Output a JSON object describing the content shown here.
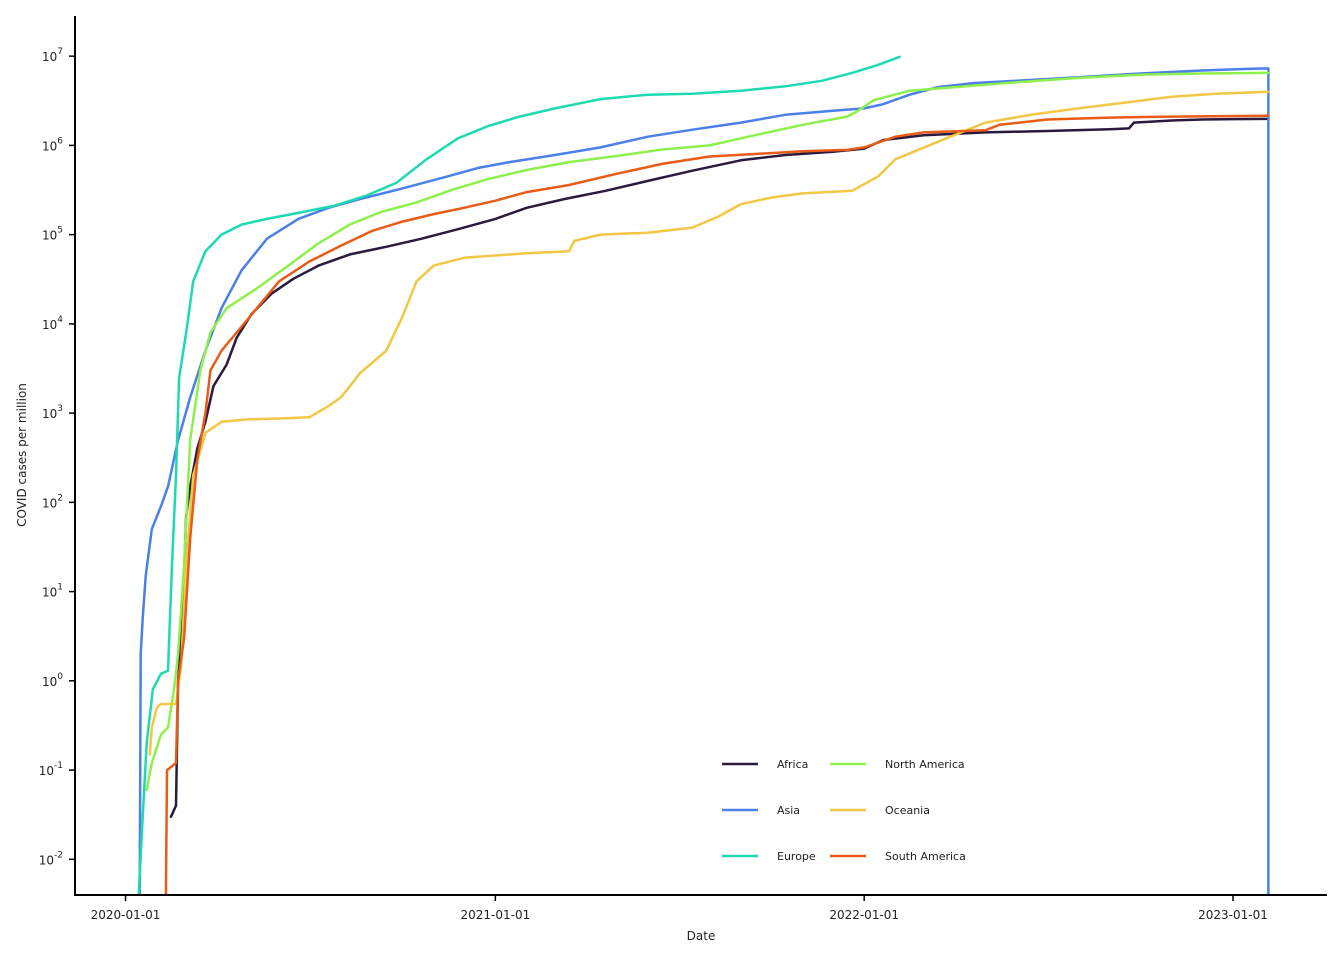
{
  "chart_data": {
    "type": "line",
    "xlabel": "Date",
    "ylabel": "COVID cases per million",
    "yscale": "log",
    "ylim_exponents": [
      -2.4,
      7.45
    ],
    "xlim": [
      "2019-11-12",
      "2023-04-04"
    ],
    "x_ticks": [
      "2020-01-01",
      "2021-01-01",
      "2022-01-01",
      "2023-01-01"
    ],
    "y_ticks": [
      {
        "base": "10",
        "exp": "-2"
      },
      {
        "base": "10",
        "exp": "-1"
      },
      {
        "base": "10",
        "exp": "0"
      },
      {
        "base": "10",
        "exp": "1"
      },
      {
        "base": "10",
        "exp": "2"
      },
      {
        "base": "10",
        "exp": "3"
      },
      {
        "base": "10",
        "exp": "4"
      },
      {
        "base": "10",
        "exp": "5"
      },
      {
        "base": "10",
        "exp": "6"
      },
      {
        "base": "10",
        "exp": "7"
      }
    ],
    "legend_position": "bottom-center",
    "grid": false,
    "series": [
      {
        "name": "Africa",
        "color": "#2b1a3f",
        "points": [
          [
            "2020-02-15",
            0.03
          ],
          [
            "2020-02-20",
            0.04
          ],
          [
            "2020-02-22",
            1
          ],
          [
            "2020-02-26",
            4
          ],
          [
            "2020-03-01",
            70
          ],
          [
            "2020-03-05",
            150
          ],
          [
            "2020-03-12",
            400
          ],
          [
            "2020-03-20",
            800
          ],
          [
            "2020-03-28",
            2000
          ],
          [
            "2020-04-10",
            3500
          ],
          [
            "2020-04-20",
            7000
          ],
          [
            "2020-05-05",
            13000
          ],
          [
            "2020-05-25",
            22000
          ],
          [
            "2020-06-15",
            32000
          ],
          [
            "2020-07-10",
            45000
          ],
          [
            "2020-08-10",
            60000
          ],
          [
            "2020-09-15",
            73000
          ],
          [
            "2020-10-20",
            90000
          ],
          [
            "2020-11-25",
            115000
          ],
          [
            "2021-01-01",
            150000
          ],
          [
            "2021-02-01",
            200000
          ],
          [
            "2021-03-10",
            250000
          ],
          [
            "2021-04-20",
            310000
          ],
          [
            "2021-06-01",
            400000
          ],
          [
            "2021-07-15",
            520000
          ],
          [
            "2021-09-01",
            680000
          ],
          [
            "2021-10-15",
            780000
          ],
          [
            "2021-12-01",
            850000
          ],
          [
            "2022-01-01",
            920000
          ],
          [
            "2022-01-20",
            1150000
          ],
          [
            "2022-03-01",
            1300000
          ],
          [
            "2022-05-01",
            1400000
          ],
          [
            "2022-07-01",
            1450000
          ],
          [
            "2022-09-01",
            1520000
          ],
          [
            "2022-09-20",
            1550000
          ],
          [
            "2022-09-25",
            1800000
          ],
          [
            "2022-11-01",
            1900000
          ],
          [
            "2022-12-01",
            1950000
          ],
          [
            "2023-01-01",
            1970000
          ],
          [
            "2023-02-05",
            1980000
          ]
        ]
      },
      {
        "name": "Asia",
        "color": "#4a80e8",
        "points": [
          [
            "2020-01-15",
            0.004
          ],
          [
            "2020-01-16",
            2
          ],
          [
            "2020-01-18",
            5
          ],
          [
            "2020-01-21",
            15
          ],
          [
            "2020-01-27",
            50
          ],
          [
            "2020-02-05",
            90
          ],
          [
            "2020-02-12",
            150
          ],
          [
            "2020-02-22",
            500
          ],
          [
            "2020-03-05",
            1500
          ],
          [
            "2020-03-20",
            5000
          ],
          [
            "2020-04-05",
            15000
          ],
          [
            "2020-04-25",
            40000
          ],
          [
            "2020-05-20",
            90000
          ],
          [
            "2020-06-20",
            150000
          ],
          [
            "2020-07-20",
            200000
          ],
          [
            "2020-08-20",
            250000
          ],
          [
            "2020-10-01",
            330000
          ],
          [
            "2020-11-15",
            450000
          ],
          [
            "2020-12-15",
            560000
          ],
          [
            "2021-01-15",
            650000
          ],
          [
            "2021-03-01",
            780000
          ],
          [
            "2021-04-15",
            950000
          ],
          [
            "2021-06-01",
            1250000
          ],
          [
            "2021-07-15",
            1500000
          ],
          [
            "2021-09-01",
            1800000
          ],
          [
            "2021-10-15",
            2200000
          ],
          [
            "2021-12-01",
            2450000
          ],
          [
            "2022-01-01",
            2600000
          ],
          [
            "2022-01-20",
            2900000
          ],
          [
            "2022-02-15",
            3700000
          ],
          [
            "2022-03-15",
            4500000
          ],
          [
            "2022-04-20",
            5000000
          ],
          [
            "2022-06-01",
            5300000
          ],
          [
            "2022-08-01",
            5800000
          ],
          [
            "2022-10-01",
            6400000
          ],
          [
            "2022-12-01",
            6900000
          ],
          [
            "2023-01-15",
            7200000
          ],
          [
            "2023-02-05",
            7300000
          ],
          [
            "2023-02-05",
            0.004
          ]
        ]
      },
      {
        "name": "Europe",
        "color": "#1ddab0",
        "points": [
          [
            "2020-01-14",
            0.004
          ],
          [
            "2020-01-18",
            0.03
          ],
          [
            "2020-01-22",
            0.2
          ],
          [
            "2020-01-28",
            0.8
          ],
          [
            "2020-02-05",
            1.2
          ],
          [
            "2020-02-12",
            1.3
          ],
          [
            "2020-02-16",
            20
          ],
          [
            "2020-02-20",
            200
          ],
          [
            "2020-02-23",
            2500
          ],
          [
            "2020-03-01",
            8000
          ],
          [
            "2020-03-08",
            30000
          ],
          [
            "2020-03-20",
            65000
          ],
          [
            "2020-04-05",
            100000
          ],
          [
            "2020-04-25",
            130000
          ],
          [
            "2020-05-20",
            150000
          ],
          [
            "2020-06-20",
            175000
          ],
          [
            "2020-07-25",
            210000
          ],
          [
            "2020-08-25",
            270000
          ],
          [
            "2020-09-25",
            380000
          ],
          [
            "2020-10-25",
            700000
          ],
          [
            "2020-11-25",
            1200000
          ],
          [
            "2020-12-25",
            1650000
          ],
          [
            "2021-01-25",
            2100000
          ],
          [
            "2021-03-01",
            2600000
          ],
          [
            "2021-04-15",
            3300000
          ],
          [
            "2021-06-01",
            3700000
          ],
          [
            "2021-07-15",
            3800000
          ],
          [
            "2021-09-01",
            4100000
          ],
          [
            "2021-10-15",
            4600000
          ],
          [
            "2021-11-20",
            5300000
          ],
          [
            "2021-12-20",
            6500000
          ],
          [
            "2022-01-15",
            8000000
          ],
          [
            "2022-02-05",
            9800000
          ]
        ]
      },
      {
        "name": "North America",
        "color": "#8ef04c",
        "points": [
          [
            "2020-01-22",
            0.06
          ],
          [
            "2020-01-27",
            0.12
          ],
          [
            "2020-02-05",
            0.25
          ],
          [
            "2020-02-12",
            0.3
          ],
          [
            "2020-02-18",
            0.8
          ],
          [
            "2020-02-22",
            2
          ],
          [
            "2020-02-28",
            20
          ],
          [
            "2020-03-05",
            500
          ],
          [
            "2020-03-15",
            3000
          ],
          [
            "2020-03-25",
            8000
          ],
          [
            "2020-04-10",
            15000
          ],
          [
            "2020-05-10",
            25000
          ],
          [
            "2020-06-10",
            45000
          ],
          [
            "2020-07-10",
            80000
          ],
          [
            "2020-08-10",
            130000
          ],
          [
            "2020-09-10",
            180000
          ],
          [
            "2020-10-15",
            230000
          ],
          [
            "2020-11-20",
            320000
          ],
          [
            "2020-12-25",
            420000
          ],
          [
            "2021-02-01",
            530000
          ],
          [
            "2021-03-15",
            650000
          ],
          [
            "2021-05-01",
            760000
          ],
          [
            "2021-06-15",
            900000
          ],
          [
            "2021-08-01",
            1000000
          ],
          [
            "2021-09-15",
            1300000
          ],
          [
            "2021-11-01",
            1700000
          ],
          [
            "2021-12-15",
            2100000
          ],
          [
            "2021-12-25",
            2400000
          ],
          [
            "2022-01-10",
            3200000
          ],
          [
            "2022-02-15",
            4100000
          ],
          [
            "2022-04-01",
            4500000
          ],
          [
            "2022-06-01",
            5100000
          ],
          [
            "2022-08-01",
            5700000
          ],
          [
            "2022-10-01",
            6200000
          ],
          [
            "2022-12-01",
            6400000
          ],
          [
            "2023-02-05",
            6500000
          ]
        ]
      },
      {
        "name": "Oceania",
        "color": "#f2c744",
        "points": [
          [
            "2020-01-25",
            0.15
          ],
          [
            "2020-01-27",
            0.3
          ],
          [
            "2020-02-01",
            0.5
          ],
          [
            "2020-02-05",
            0.55
          ],
          [
            "2020-02-20",
            0.55
          ],
          [
            "2020-02-25",
            1.5
          ],
          [
            "2020-03-01",
            20
          ],
          [
            "2020-03-08",
            200
          ],
          [
            "2020-03-20",
            600
          ],
          [
            "2020-04-05",
            800
          ],
          [
            "2020-05-01",
            850
          ],
          [
            "2020-06-01",
            870
          ],
          [
            "2020-07-01",
            900
          ],
          [
            "2020-07-20",
            1200
          ],
          [
            "2020-08-01",
            1500
          ],
          [
            "2020-08-10",
            2000
          ],
          [
            "2020-08-20",
            2800
          ],
          [
            "2020-09-15",
            5000
          ],
          [
            "2020-10-01",
            12000
          ],
          [
            "2020-10-15",
            30000
          ],
          [
            "2020-11-01",
            45000
          ],
          [
            "2020-12-01",
            55000
          ],
          [
            "2021-02-01",
            62000
          ],
          [
            "2021-03-15",
            65000
          ],
          [
            "2021-03-20",
            85000
          ],
          [
            "2021-04-15",
            100000
          ],
          [
            "2021-06-01",
            105000
          ],
          [
            "2021-07-15",
            120000
          ],
          [
            "2021-08-10",
            160000
          ],
          [
            "2021-09-01",
            220000
          ],
          [
            "2021-10-01",
            260000
          ],
          [
            "2021-11-01",
            290000
          ],
          [
            "2021-12-20",
            310000
          ],
          [
            "2022-01-15",
            450000
          ],
          [
            "2022-02-01",
            700000
          ],
          [
            "2022-03-15",
            1100000
          ],
          [
            "2022-05-01",
            1800000
          ],
          [
            "2022-06-15",
            2200000
          ],
          [
            "2022-08-01",
            2600000
          ],
          [
            "2022-09-15",
            3000000
          ],
          [
            "2022-11-01",
            3500000
          ],
          [
            "2022-12-15",
            3800000
          ],
          [
            "2023-02-05",
            4000000
          ]
        ]
      },
      {
        "name": "South America",
        "color": "#e95b17",
        "points": [
          [
            "2020-02-10",
            0.004
          ],
          [
            "2020-02-11",
            0.1
          ],
          [
            "2020-02-20",
            0.12
          ],
          [
            "2020-02-22",
            1
          ],
          [
            "2020-02-28",
            3
          ],
          [
            "2020-03-05",
            40
          ],
          [
            "2020-03-12",
            300
          ],
          [
            "2020-03-20",
            1000
          ],
          [
            "2020-03-25",
            3000
          ],
          [
            "2020-04-05",
            5000
          ],
          [
            "2020-04-20",
            8000
          ],
          [
            "2020-05-10",
            15000
          ],
          [
            "2020-06-01",
            30000
          ],
          [
            "2020-07-01",
            50000
          ],
          [
            "2020-08-01",
            75000
          ],
          [
            "2020-09-01",
            110000
          ],
          [
            "2020-10-01",
            140000
          ],
          [
            "2020-11-01",
            170000
          ],
          [
            "2020-12-01",
            200000
          ],
          [
            "2021-01-01",
            240000
          ],
          [
            "2021-02-01",
            300000
          ],
          [
            "2021-03-15",
            360000
          ],
          [
            "2021-05-01",
            480000
          ],
          [
            "2021-06-15",
            620000
          ],
          [
            "2021-08-01",
            750000
          ],
          [
            "2021-09-15",
            800000
          ],
          [
            "2021-11-01",
            860000
          ],
          [
            "2021-12-15",
            890000
          ],
          [
            "2022-01-01",
            950000
          ],
          [
            "2022-02-01",
            1250000
          ],
          [
            "2022-03-01",
            1400000
          ],
          [
            "2022-05-01",
            1480000
          ],
          [
            "2022-05-15",
            1700000
          ],
          [
            "2022-07-01",
            1950000
          ],
          [
            "2022-09-01",
            2050000
          ],
          [
            "2022-11-01",
            2100000
          ],
          [
            "2023-02-05",
            2150000
          ]
        ]
      }
    ]
  }
}
